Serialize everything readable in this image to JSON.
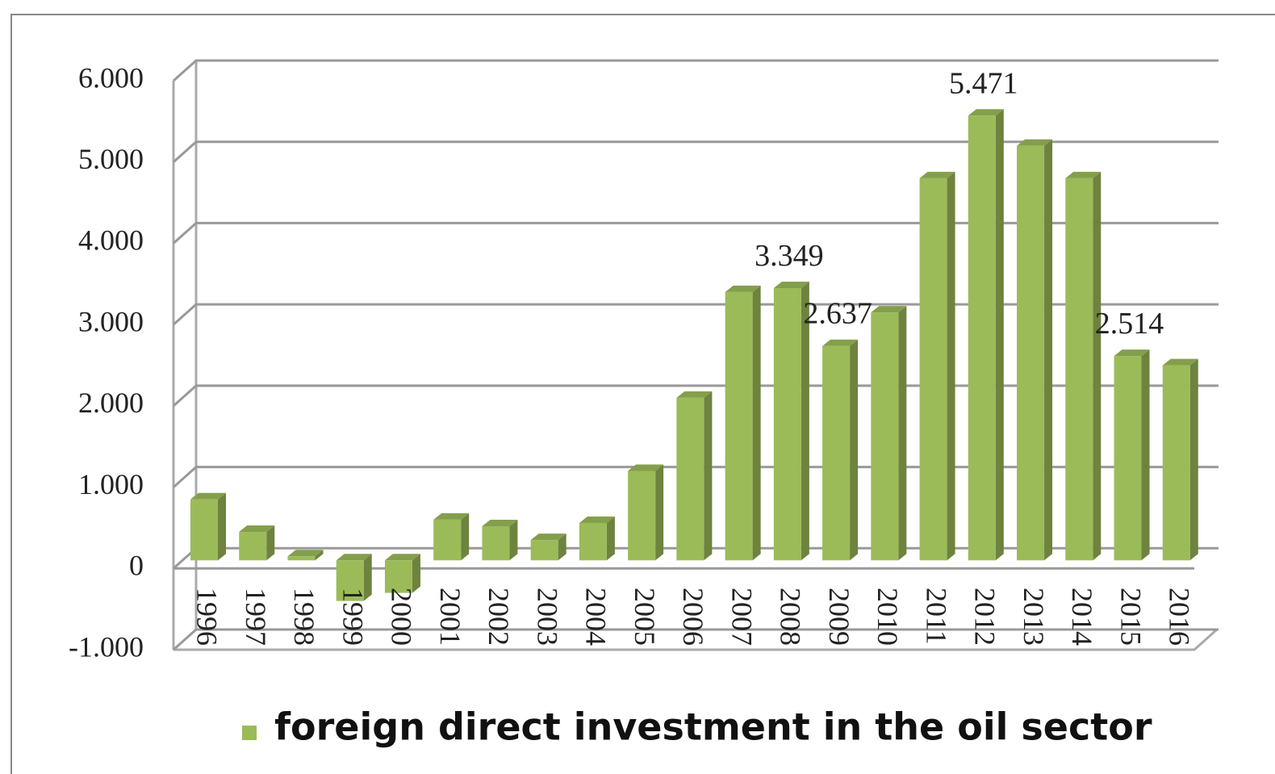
{
  "chart_data": {
    "type": "bar3d",
    "categories": [
      "1996",
      "1997",
      "1998",
      "1999",
      "2000",
      "2001",
      "2002",
      "2003",
      "2004",
      "2005",
      "2006",
      "2007",
      "2008",
      "2009",
      "2010",
      "2011",
      "2012",
      "2013",
      "2014",
      "2015",
      "2016"
    ],
    "series": [
      {
        "name": "foreign direct investment in the oil sector",
        "color": "#9bbb59",
        "values": [
          750,
          350,
          50,
          -500,
          -400,
          500,
          420,
          250,
          460,
          1100,
          2000,
          3300,
          3349,
          2637,
          3050,
          4700,
          5471,
          5100,
          4700,
          2514,
          2400
        ],
        "value_labels": [
          null,
          null,
          null,
          null,
          null,
          null,
          null,
          null,
          null,
          null,
          null,
          null,
          "3.349",
          "2.637",
          null,
          null,
          "5.471",
          null,
          null,
          "2.514",
          null
        ]
      }
    ],
    "ylim": [
      -1000,
      6000
    ],
    "yticks": [
      {
        "value": -1000,
        "label": "-1.000"
      },
      0,
      {
        "value": 1000,
        "label": "1.000"
      },
      {
        "value": 2000,
        "label": "2.000"
      },
      {
        "value": 3000,
        "label": "3.000"
      },
      {
        "value": 4000,
        "label": "4.000"
      },
      {
        "value": 5000,
        "label": "5.000"
      },
      {
        "value": 6000,
        "label": "6.000"
      }
    ],
    "grid": true,
    "legend": "bottom"
  }
}
